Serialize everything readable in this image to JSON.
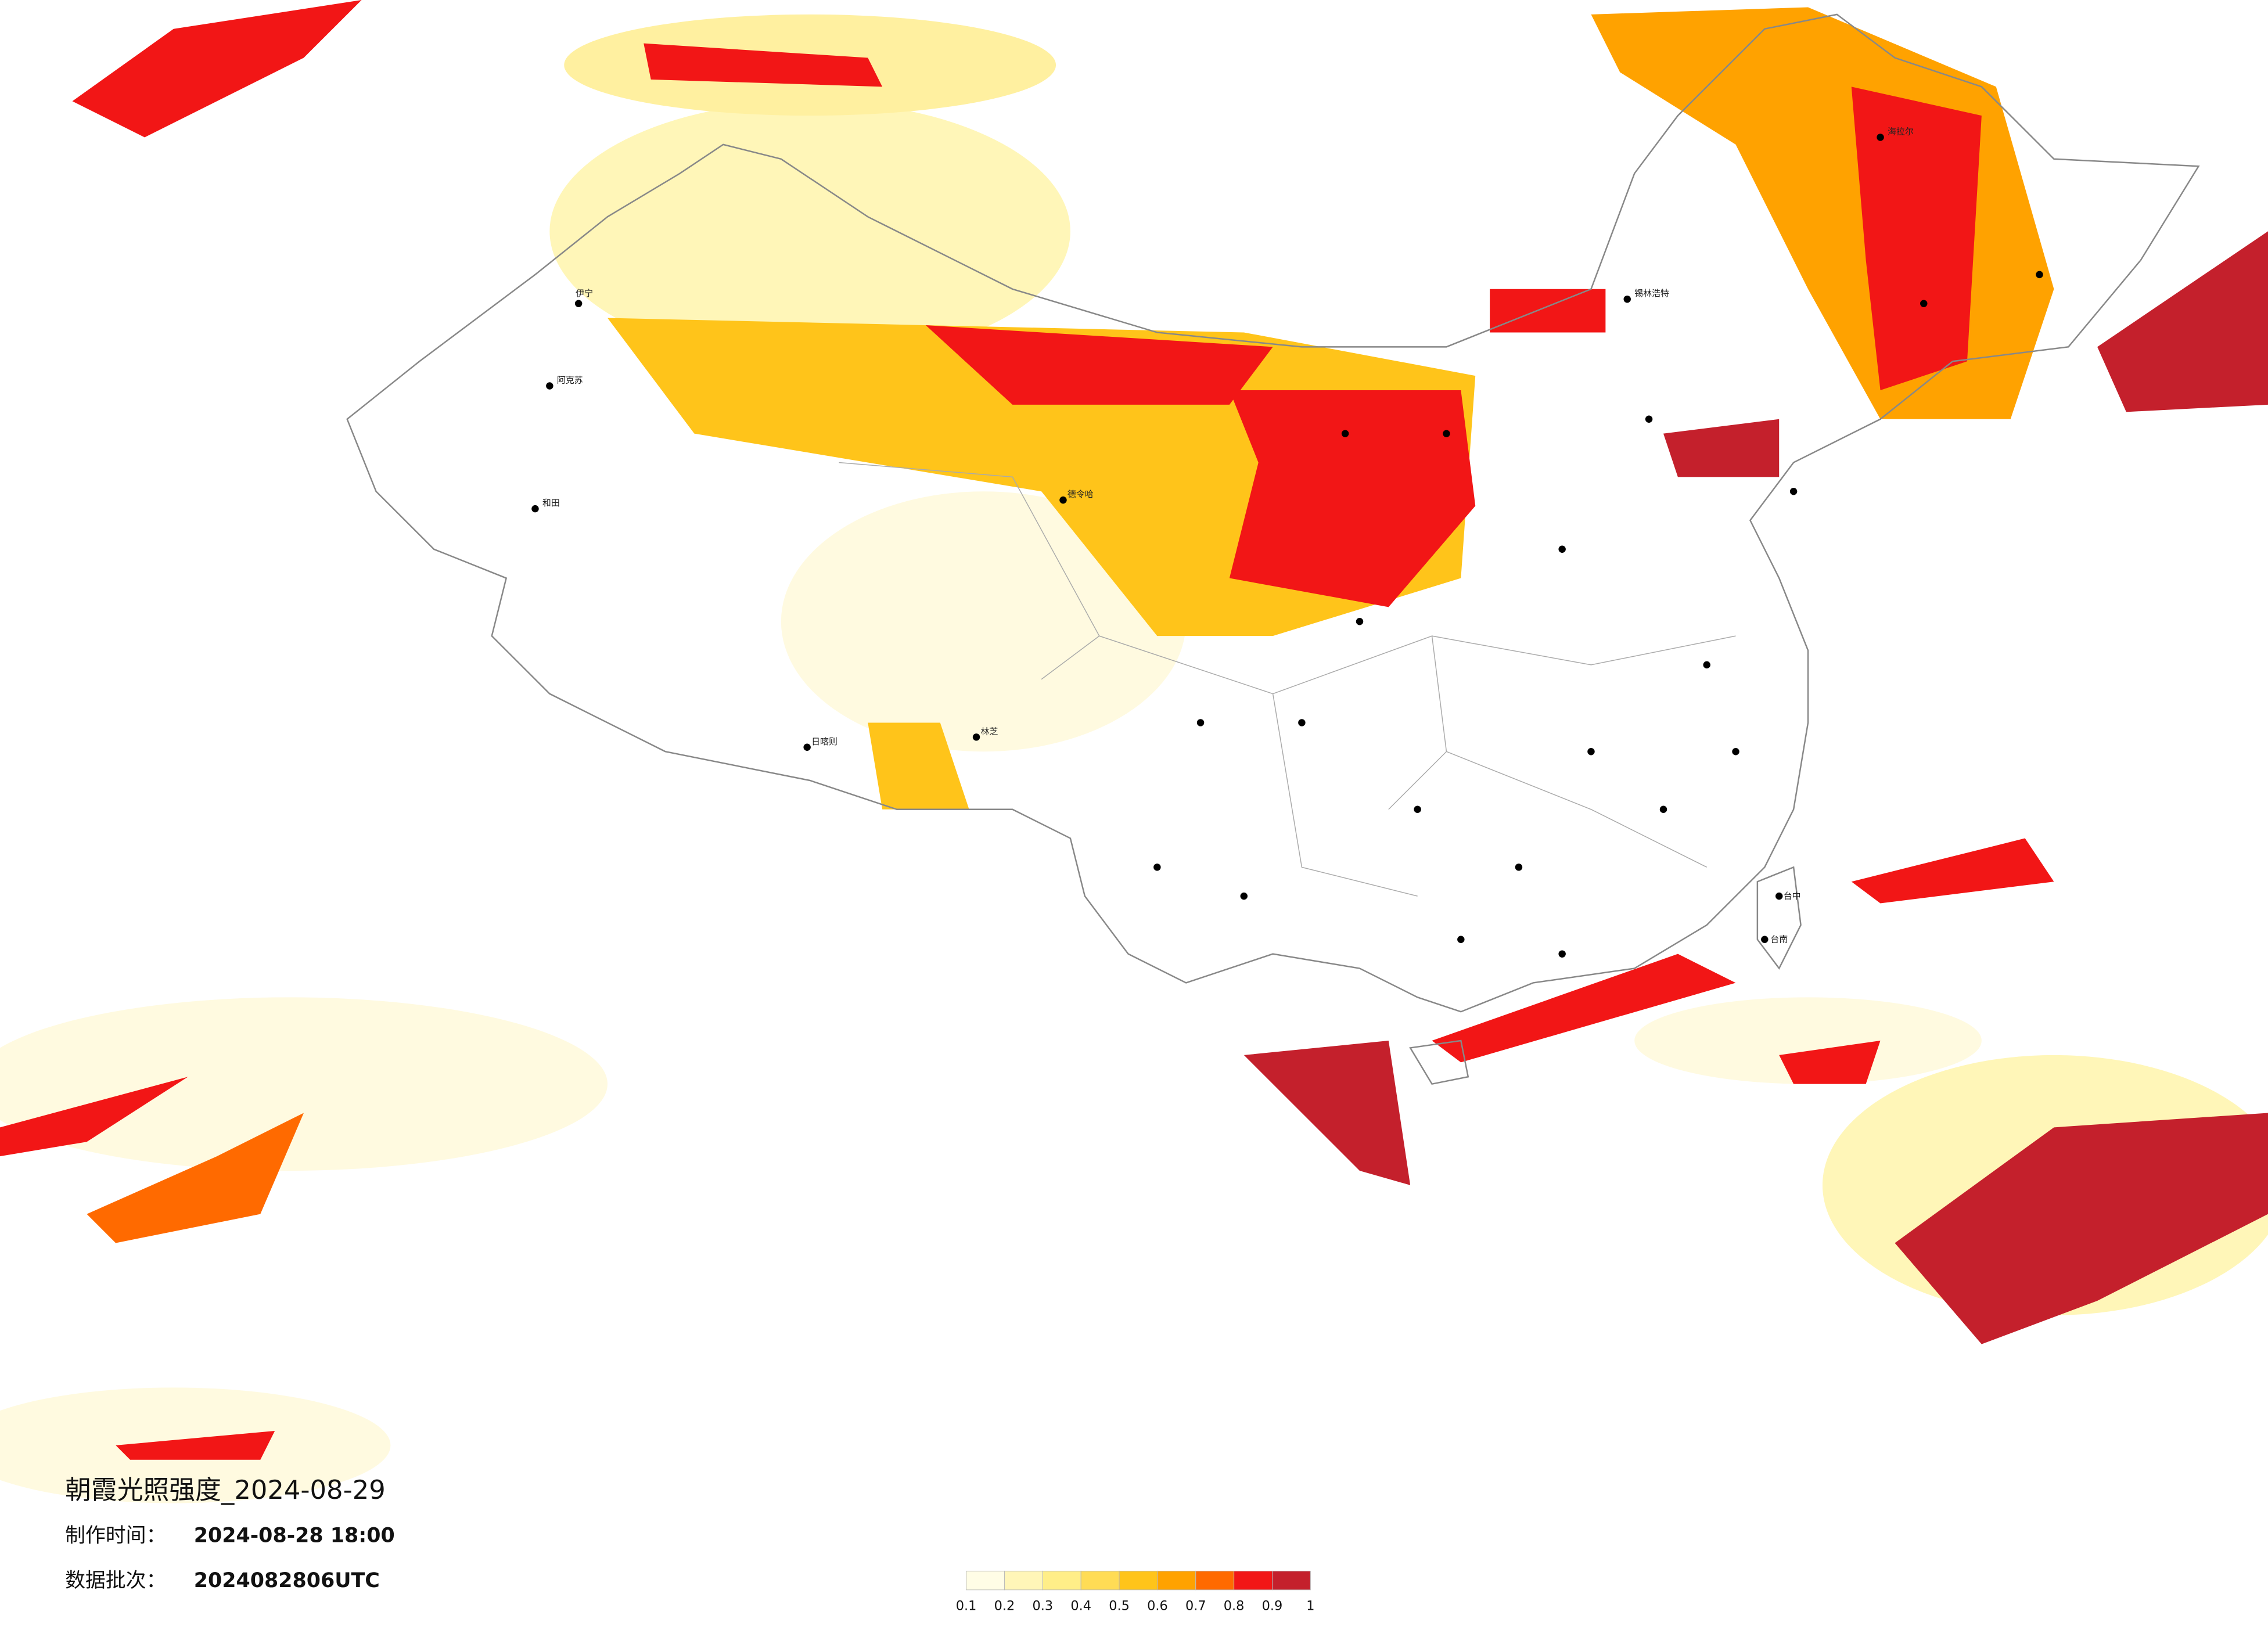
{
  "title": "朝霞光照强度_2024-08-29",
  "info": [
    {
      "label": "制作时间：",
      "value": "2024-08-28 18:00"
    },
    {
      "label": "数据批次：",
      "value": "2024082806UTC"
    }
  ],
  "legend": {
    "ticks": [
      0.1,
      0.2,
      0.3,
      0.4,
      0.5,
      0.6,
      0.7,
      0.8,
      0.9,
      1
    ],
    "colors": [
      "#fffde6",
      "#fff6b8",
      "#ffee88",
      "#ffdc55",
      "#ffc41a",
      "#ffa200",
      "#ff6a00",
      "#f21616",
      "#c4202c"
    ]
  },
  "cities": [
    "海拉尔",
    "锡林浩特",
    "阿克苏",
    "和田",
    "伊宁",
    "德令哈",
    "日喀则",
    "林芝",
    "台中",
    "台南"
  ]
}
